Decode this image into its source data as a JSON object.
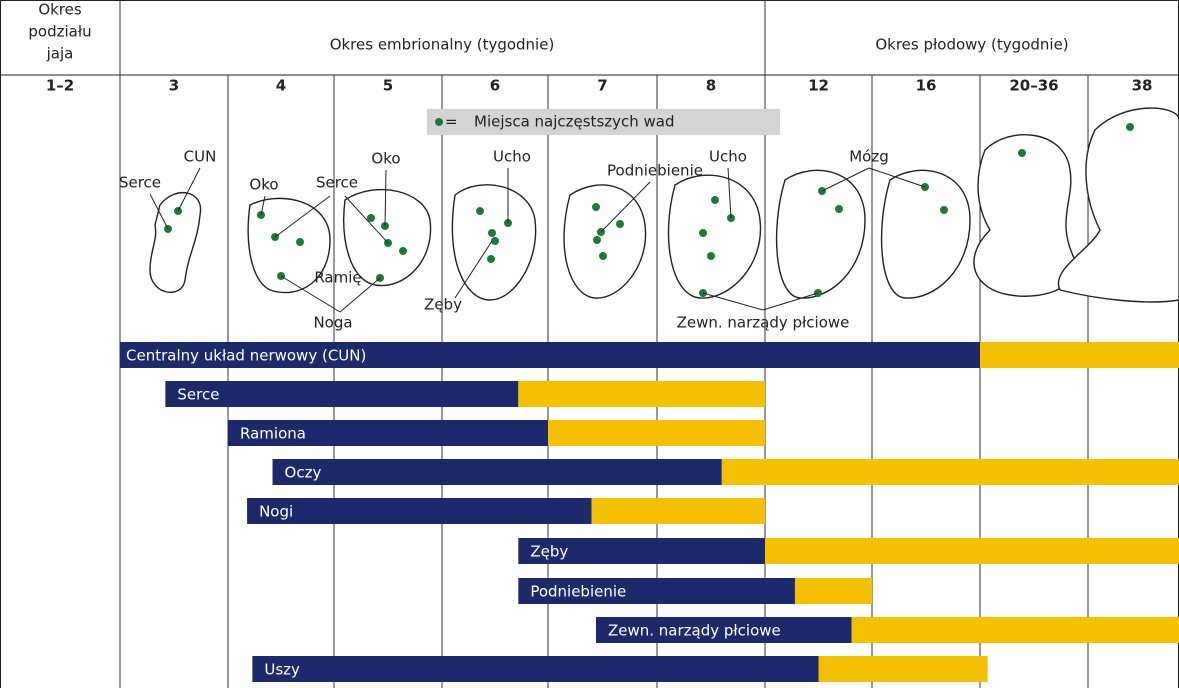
{
  "header": {
    "cleavage_period": [
      "Okres",
      "podziału",
      "jaja"
    ],
    "embryonic_period": "Okres embrionalny (tygodnie)",
    "fetal_period": "Okres płodowy (tygodnie)"
  },
  "weeks": [
    "1–2",
    "3",
    "4",
    "5",
    "6",
    "7",
    "8",
    "12",
    "16",
    "20–36",
    "38"
  ],
  "legend": {
    "symbol": "=",
    "label": "Miejsca najczęstszych wad"
  },
  "illustration_labels": [
    "CUN",
    "Serce",
    "Oko",
    "Serce",
    "Oko",
    "Ramię",
    "Noga",
    "Zęby",
    "Ucho",
    "Podniebienie",
    "Ucho",
    "Mózg",
    "Zewn. narządy płciowe"
  ],
  "colors": {
    "critical": "#1c2a6c",
    "minor": "#f4c000"
  },
  "bars": [
    {
      "label": "Centralny układ nerwowy (CUN)",
      "start": 1,
      "critical_end": 9,
      "end": 11
    },
    {
      "label": "Serce",
      "start": 1.42,
      "critical_end": 4.72,
      "end": 7
    },
    {
      "label": "Ramiona",
      "start": 2,
      "critical_end": 5,
      "end": 7
    },
    {
      "label": "Oczy",
      "start": 2.42,
      "critical_end": 6.6,
      "end": 11
    },
    {
      "label": "Nogi",
      "start": 2.18,
      "critical_end": 5.4,
      "end": 7
    },
    {
      "label": "Zęby",
      "start": 4.72,
      "critical_end": 7,
      "end": 11
    },
    {
      "label": "Podniebienie",
      "start": 4.72,
      "critical_end": 7.28,
      "end": 8
    },
    {
      "label": "Zewn. narządy płciowe",
      "start": 5.44,
      "critical_end": 7.81,
      "end": 11
    },
    {
      "label": "Uszy",
      "start": 2.23,
      "critical_end": 7.5,
      "end": 9.07
    }
  ]
}
